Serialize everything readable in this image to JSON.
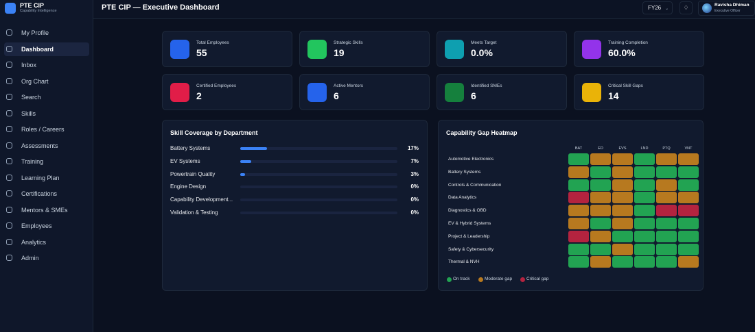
{
  "brand": {
    "name": "PTE CIP",
    "tagline": "Capability Intelligence"
  },
  "header": {
    "title": "PTE CIP — Executive Dashboard",
    "period": "FY26",
    "user_name": "Ravisha Dhiman",
    "user_role": "Executive Officer"
  },
  "nav": {
    "active": 1,
    "items": [
      "My Profile",
      "Dashboard",
      "Inbox",
      "Org Chart",
      "Search",
      "Skills",
      "Roles / Careers",
      "Assessments",
      "Training",
      "Learning Plan",
      "Certifications",
      "Mentors & SMEs",
      "Employees",
      "Analytics",
      "Admin"
    ]
  },
  "kpis": [
    {
      "label": "Total Employees",
      "value": 55,
      "color": "#2563eb"
    },
    {
      "label": "Strategic Skills",
      "value": 19,
      "color": "#22c55e"
    },
    {
      "label": "Meets Target",
      "value": "0.0%",
      "color": "#0e9fb0"
    },
    {
      "label": "Training Completion",
      "value": "60.0%",
      "color": "#9333ea"
    },
    {
      "label": "Certified Employees",
      "value": 2,
      "color": "#e11d48"
    },
    {
      "label": "Active Mentors",
      "value": 6,
      "color": "#2563eb"
    },
    {
      "label": "Identified SMEs",
      "value": 6,
      "color": "#15803d"
    },
    {
      "label": "Critical Skill Gaps",
      "value": 14,
      "color": "#eab308"
    }
  ],
  "skill_coverage": {
    "title": "Skill Coverage by Department",
    "color": "#3b82f6",
    "rows": [
      {
        "name": "Battery Systems",
        "value": 17,
        "value_label": "17%"
      },
      {
        "name": "EV Systems",
        "value": 7,
        "value_label": "7%"
      },
      {
        "name": "Powertrain Quality",
        "value": 3,
        "value_label": "3%"
      },
      {
        "name": "Engine Design",
        "value": 0,
        "value_label": "0%"
      },
      {
        "name": "Capability Development...",
        "value": 0,
        "value_label": "0%"
      },
      {
        "name": "Validation & Testing",
        "value": 0,
        "value_label": "0%"
      }
    ]
  },
  "heatmap": {
    "title": "Capability Gap Heatmap",
    "columns": [
      "BAT",
      "ED",
      "EVS",
      "LND",
      "PTQ",
      "VNT"
    ],
    "legend": [
      {
        "label": "On track",
        "color": "#22a352"
      },
      {
        "label": "Moderate gap",
        "color": "#b7791f"
      },
      {
        "label": "Critical gap",
        "color": "#b4233f"
      }
    ],
    "rows": [
      {
        "name": "Automotive Electronics",
        "cells": [
          0,
          1,
          1,
          0,
          1,
          1
        ]
      },
      {
        "name": "Battery Systems",
        "cells": [
          1,
          0,
          1,
          0,
          0,
          0
        ]
      },
      {
        "name": "Controls & Communication",
        "cells": [
          0,
          0,
          1,
          0,
          1,
          0
        ]
      },
      {
        "name": "Data Analytics",
        "cells": [
          2,
          1,
          1,
          0,
          1,
          1
        ]
      },
      {
        "name": "Diagnostics & OBD",
        "cells": [
          1,
          1,
          1,
          0,
          2,
          2
        ]
      },
      {
        "name": "EV & Hybrid Systems",
        "cells": [
          1,
          0,
          1,
          0,
          0,
          0
        ]
      },
      {
        "name": "Project & Leadership",
        "cells": [
          2,
          1,
          0,
          0,
          0,
          0
        ]
      },
      {
        "name": "Safety & Cybersecurity",
        "cells": [
          0,
          0,
          1,
          0,
          0,
          0
        ]
      },
      {
        "name": "Thermal & NVH",
        "cells": [
          0,
          1,
          0,
          0,
          0,
          1
        ]
      }
    ]
  }
}
